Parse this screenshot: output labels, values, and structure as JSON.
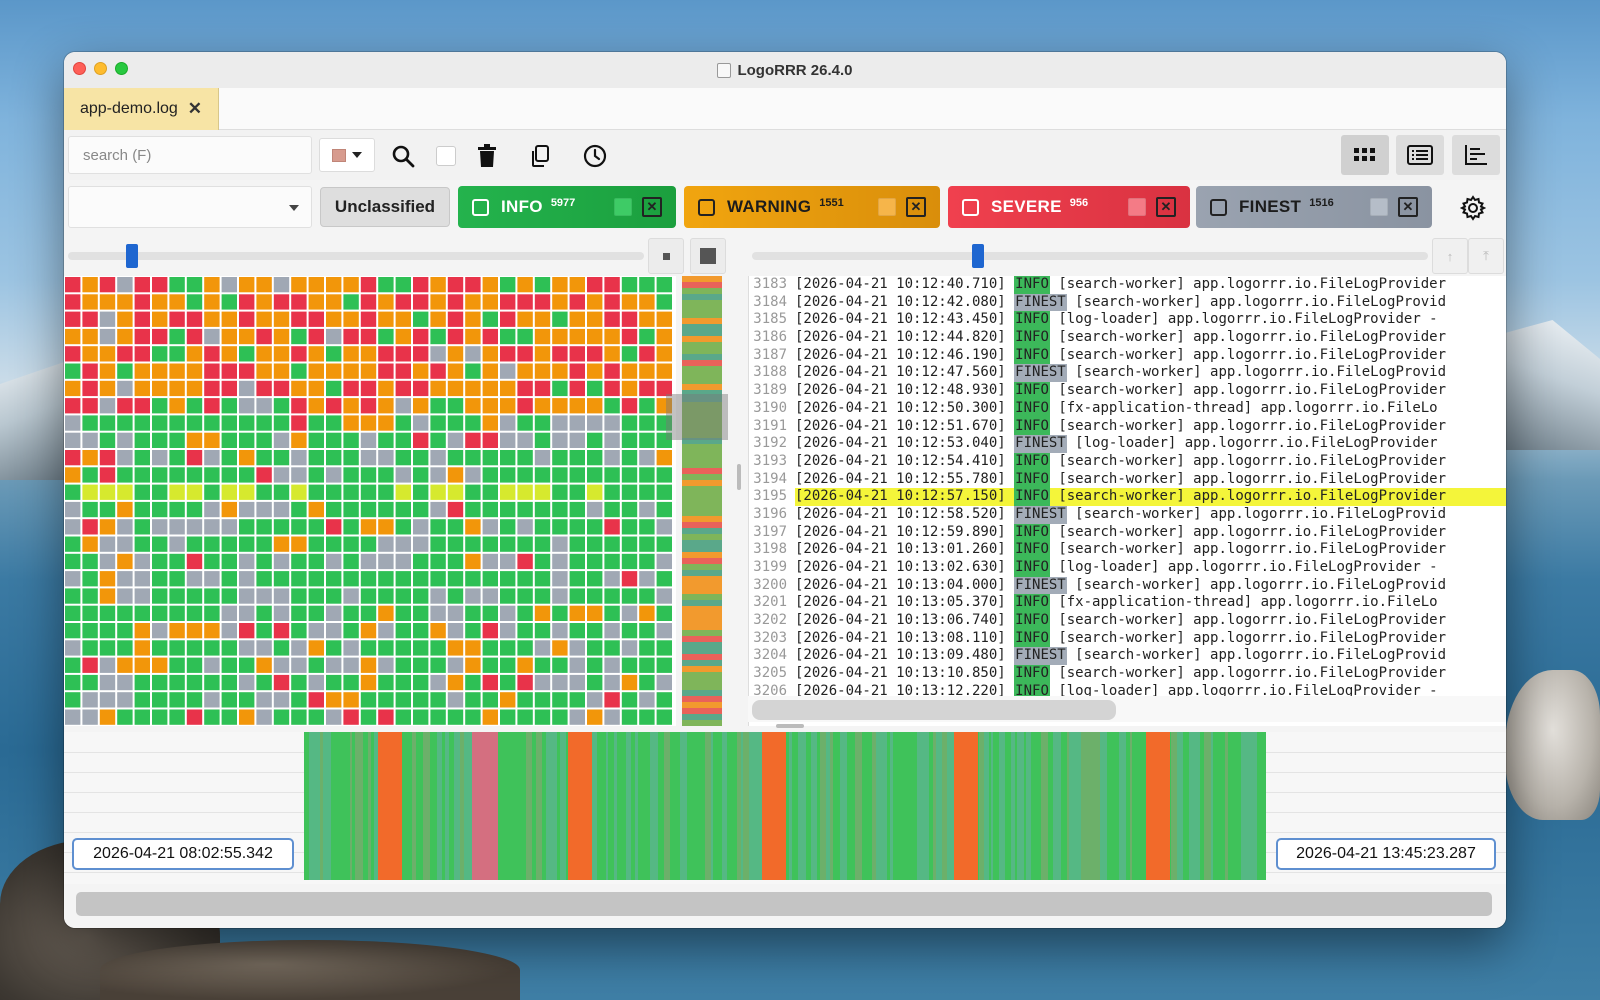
{
  "window": {
    "title": "LogoRRR 26.4.0"
  },
  "tabs": [
    {
      "label": "app-demo.log",
      "close": "✕"
    }
  ],
  "toolbar": {
    "search_placeholder": "search (F)",
    "color_swatch": "#d79b8e",
    "icons": [
      "search-icon",
      "trash-icon",
      "copy-icon",
      "clock-icon"
    ],
    "view_icons": [
      "grid-view-icon",
      "list-view-icon",
      "chart-view-icon"
    ]
  },
  "filters": {
    "unclassified": "Unclassified",
    "chips": [
      {
        "label": "INFO",
        "count": "5977",
        "color": "#1fab45",
        "swatch": "#3ecb66"
      },
      {
        "label": "WARNING",
        "count": "1551",
        "color": "#e99b0c",
        "swatch": "#f6b54a"
      },
      {
        "label": "SEVERE",
        "count": "956",
        "color": "#e63948",
        "swatch": "#f47b86"
      },
      {
        "label": "FINEST",
        "count": "1516",
        "color": "#939ca9",
        "swatch": "#b5bdc8"
      }
    ]
  },
  "status_colors": {
    "info": "#2ec055",
    "warning": "#f2960a",
    "severe": "#e8334a",
    "finest": "#a0a8b4",
    "highlight": "#d6e92e"
  },
  "log": {
    "lines": [
      {
        "n": "3183",
        "ts": "[2026-04-21 10:12:40.710]",
        "level": "INFO",
        "rest": "[search-worker] app.logorrr.io.FileLogProvider"
      },
      {
        "n": "3184",
        "ts": "[2026-04-21 10:12:42.080]",
        "level": "FINEST",
        "rest": "[search-worker] app.logorrr.io.FileLogProvid"
      },
      {
        "n": "3185",
        "ts": "[2026-04-21 10:12:43.450]",
        "level": "INFO",
        "rest": "[log-loader] app.logorrr.io.FileLogProvider -"
      },
      {
        "n": "3186",
        "ts": "[2026-04-21 10:12:44.820]",
        "level": "INFO",
        "rest": "[search-worker] app.logorrr.io.FileLogProvider"
      },
      {
        "n": "3187",
        "ts": "[2026-04-21 10:12:46.190]",
        "level": "INFO",
        "rest": "[search-worker] app.logorrr.io.FileLogProvider"
      },
      {
        "n": "3188",
        "ts": "[2026-04-21 10:12:47.560]",
        "level": "FINEST",
        "rest": "[search-worker] app.logorrr.io.FileLogProvid"
      },
      {
        "n": "3189",
        "ts": "[2026-04-21 10:12:48.930]",
        "level": "INFO",
        "rest": "[search-worker] app.logorrr.io.FileLogProvider"
      },
      {
        "n": "3190",
        "ts": "[2026-04-21 10:12:50.300]",
        "level": "INFO",
        "rest": "[fx-application-thread] app.logorrr.io.FileLo"
      },
      {
        "n": "3191",
        "ts": "[2026-04-21 10:12:51.670]",
        "level": "INFO",
        "rest": "[search-worker] app.logorrr.io.FileLogProvider"
      },
      {
        "n": "3192",
        "ts": "[2026-04-21 10:12:53.040]",
        "level": "FINEST",
        "rest": "[log-loader] app.logorrr.io.FileLogProvider"
      },
      {
        "n": "3193",
        "ts": "[2026-04-21 10:12:54.410]",
        "level": "INFO",
        "rest": "[search-worker] app.logorrr.io.FileLogProvider"
      },
      {
        "n": "3194",
        "ts": "[2026-04-21 10:12:55.780]",
        "level": "INFO",
        "rest": "[search-worker] app.logorrr.io.FileLogProvider"
      },
      {
        "n": "3195",
        "ts": "[2026-04-21 10:12:57.150]",
        "level": "INFO",
        "rest": "[search-worker] app.logorrr.io.FileLogProvider",
        "highlight": true
      },
      {
        "n": "3196",
        "ts": "[2026-04-21 10:12:58.520]",
        "level": "FINEST",
        "rest": "[search-worker] app.logorrr.io.FileLogProvid"
      },
      {
        "n": "3197",
        "ts": "[2026-04-21 10:12:59.890]",
        "level": "INFO",
        "rest": "[search-worker] app.logorrr.io.FileLogProvider"
      },
      {
        "n": "3198",
        "ts": "[2026-04-21 10:13:01.260]",
        "level": "INFO",
        "rest": "[search-worker] app.logorrr.io.FileLogProvider"
      },
      {
        "n": "3199",
        "ts": "[2026-04-21 10:13:02.630]",
        "level": "INFO",
        "rest": "[log-loader] app.logorrr.io.FileLogProvider -"
      },
      {
        "n": "3200",
        "ts": "[2026-04-21 10:13:04.000]",
        "level": "FINEST",
        "rest": "[search-worker] app.logorrr.io.FileLogProvid"
      },
      {
        "n": "3201",
        "ts": "[2026-04-21 10:13:05.370]",
        "level": "INFO",
        "rest": "[fx-application-thread] app.logorrr.io.FileLo"
      },
      {
        "n": "3202",
        "ts": "[2026-04-21 10:13:06.740]",
        "level": "INFO",
        "rest": "[search-worker] app.logorrr.io.FileLogProvider"
      },
      {
        "n": "3203",
        "ts": "[2026-04-21 10:13:08.110]",
        "level": "INFO",
        "rest": "[search-worker] app.logorrr.io.FileLogProvider"
      },
      {
        "n": "3204",
        "ts": "[2026-04-21 10:13:09.480]",
        "level": "FINEST",
        "rest": "[search-worker] app.logorrr.io.FileLogProvid"
      },
      {
        "n": "3205",
        "ts": "[2026-04-21 10:13:10.850]",
        "level": "INFO",
        "rest": "[search-worker] app.logorrr.io.FileLogProvider"
      },
      {
        "n": "3206",
        "ts": "[2026-04-21 10:13:12.220]",
        "level": "INFO",
        "rest": "[log-loader] app.logorrr.io.FileLogProvider -"
      }
    ]
  },
  "timeline": {
    "start": "2026-04-21 08:02:55.342",
    "end": "2026-04-21 13:45:23.287"
  }
}
